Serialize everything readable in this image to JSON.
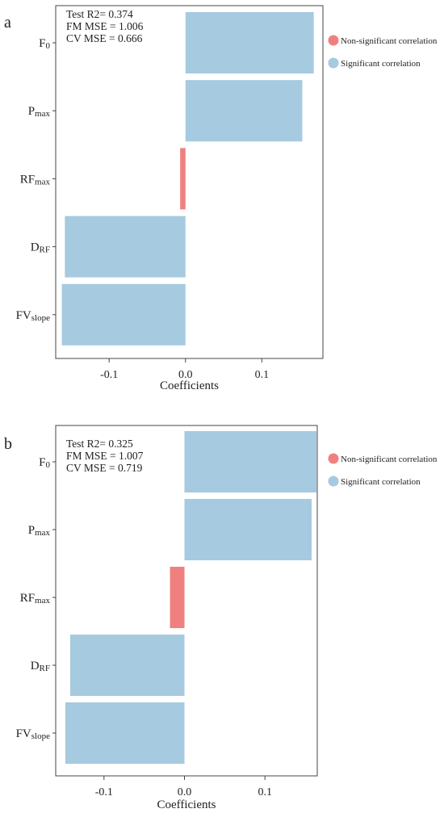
{
  "colors": {
    "significant": "#a6cadf",
    "non_significant": "#f08080",
    "axis": "#444444"
  },
  "chart_data": [
    {
      "type": "bar",
      "orientation": "horizontal",
      "panel_label": "a",
      "categories": [
        {
          "main": "F",
          "sub": "0"
        },
        {
          "main": "P",
          "sub": "max"
        },
        {
          "main": "RF",
          "sub": "max"
        },
        {
          "main": "D",
          "sub": "RF"
        },
        {
          "main": "FV",
          "sub": "slope"
        }
      ],
      "values": [
        0.168,
        0.153,
        -0.007,
        -0.158,
        -0.162
      ],
      "significance": [
        "significant",
        "significant",
        "non_significant",
        "significant",
        "significant"
      ],
      "xlabel": "Coefficients",
      "xlim": [
        -0.17,
        0.18
      ],
      "xticks": [
        -0.1,
        0.0,
        0.1
      ],
      "xtick_labels": [
        "-0.1",
        "0.0",
        "0.1"
      ],
      "stats": [
        "Test R2= 0.374",
        "FM MSE = 1.006",
        "CV MSE = 0.666"
      ],
      "legend": [
        "Non-significant correlation",
        "Significant correlation"
      ],
      "legend_position": "right"
    },
    {
      "type": "bar",
      "orientation": "horizontal",
      "panel_label": "b",
      "categories": [
        {
          "main": "F",
          "sub": "0"
        },
        {
          "main": "P",
          "sub": "max"
        },
        {
          "main": "RF",
          "sub": "max"
        },
        {
          "main": "D",
          "sub": "RF"
        },
        {
          "main": "FV",
          "sub": "slope"
        }
      ],
      "values": [
        0.164,
        0.158,
        -0.018,
        -0.142,
        -0.148
      ],
      "significance": [
        "significant",
        "significant",
        "non_significant",
        "significant",
        "significant"
      ],
      "xlabel": "Coefficients",
      "xlim": [
        -0.16,
        0.165
      ],
      "xticks": [
        -0.1,
        0.0,
        0.1
      ],
      "xtick_labels": [
        "-0.1",
        "0.0",
        "0.1"
      ],
      "stats": [
        "Test R2= 0.325",
        "FM MSE = 1.007",
        "CV MSE = 0.719"
      ],
      "legend": [
        "Non-significant correlation",
        "Significant correlation"
      ],
      "legend_position": "right"
    }
  ]
}
